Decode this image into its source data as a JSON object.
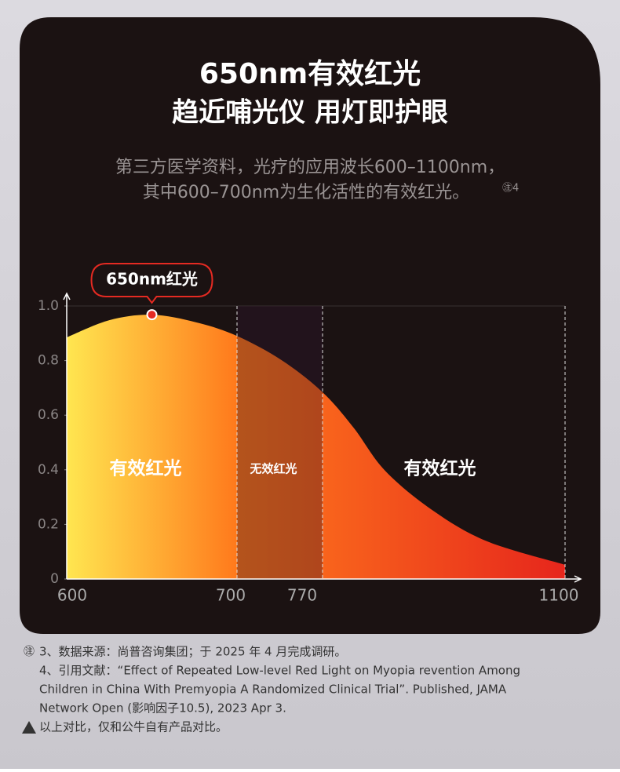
{
  "header": {
    "title_lines": [
      "650nm有效红光",
      "趋近哺光仪 用灯即护眼"
    ],
    "subtitle_lines": [
      "第三方医学资料，光疗的应用波长600–1100nm，",
      "其中600–700nm为生化活性的有效红光。"
    ],
    "subtitle_note": "㊟4"
  },
  "chart_data": {
    "type": "area",
    "x": [
      600,
      625,
      650,
      676,
      700,
      737,
      770,
      812,
      855,
      919,
      994,
      1100
    ],
    "values": [
      0.885,
      0.948,
      0.968,
      0.94,
      0.89,
      0.8,
      0.684,
      0.555,
      0.397,
      0.253,
      0.138,
      0.052
    ],
    "xlim": [
      600,
      1100
    ],
    "xticks": [
      600,
      700,
      770,
      1100
    ],
    "ylim": [
      0,
      1
    ],
    "yticks": [
      0,
      0.2,
      0.4,
      0.6,
      0.8,
      {
        "value": 1,
        "label": "1.0"
      }
    ],
    "colors": [
      "#ffe650",
      "#ff7a1c",
      "#e6261c"
    ],
    "marker": {
      "x": 650,
      "y": 0.968,
      "label": "650nm红光"
    },
    "regions": [
      {
        "x": [
          600,
          700
        ],
        "label": "有效红光"
      },
      {
        "x": [
          700,
          770
        ],
        "label": "无效红光"
      },
      {
        "x": [
          770,
          1100
        ],
        "label": "有效红光"
      }
    ]
  },
  "footnotes": {
    "mark": "㊟",
    "lines": [
      "3、数据来源：尚普咨询集团；于 2025 年 4 月完成调研。",
      "4、引用文献：“Effect of Repeated Low-level Red Light on Myopia revention Among",
      "Children in China With Premyopia A Randomized Clinical Trial”. Published, JAMA",
      "Network Open (影响因子10.5), 2023 Apr 3."
    ],
    "warning": "以上对比，仅和公牛自有产品对比。"
  }
}
